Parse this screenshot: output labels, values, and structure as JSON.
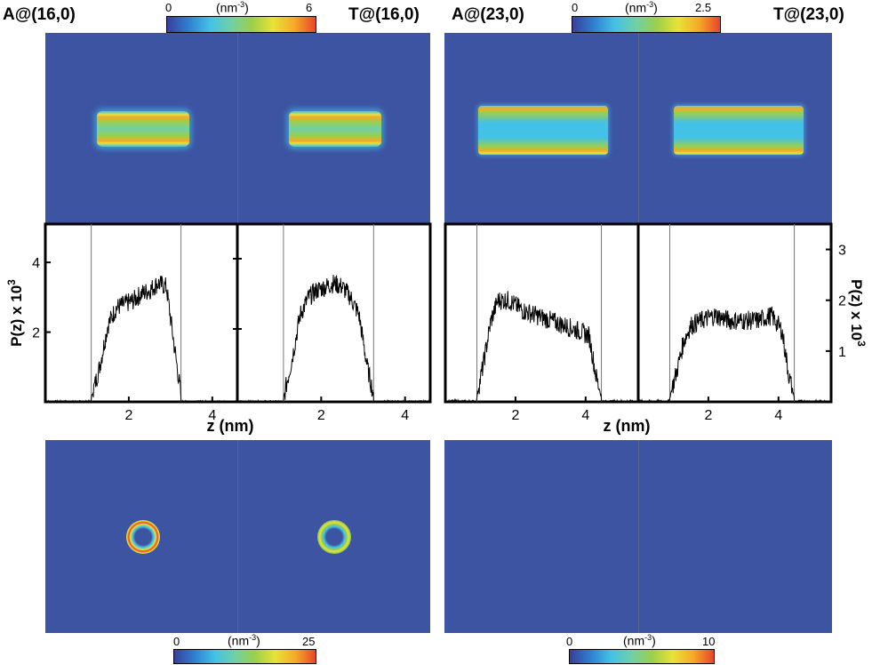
{
  "colors": {
    "map_background": "#3d54a3",
    "colormap": [
      "#3a3f9a",
      "#2f7fcf",
      "#43c1e6",
      "#6fd0a8",
      "#9ccf4a",
      "#e8e238",
      "#f6a928",
      "#e8452a"
    ]
  },
  "top": {
    "left_group": {
      "labels": [
        "A@(16,0)",
        "T@(16,0)"
      ],
      "colorbar": {
        "min": "0",
        "unit": "(nm",
        "unit_exp": "-3",
        "unit_close": ")",
        "max": "6"
      }
    },
    "right_group": {
      "labels": [
        "A@(23,0)",
        "T@(23,0)"
      ],
      "colorbar": {
        "min": "0",
        "unit": "(nm",
        "unit_exp": "-3",
        "unit_close": ")",
        "max": "2.5"
      }
    }
  },
  "bottom": {
    "left_group": {
      "colorbar": {
        "min": "0",
        "unit": "(nm",
        "unit_exp": "-3",
        "unit_close": ")",
        "max": "25"
      }
    },
    "right_group": {
      "colorbar": {
        "min": "0",
        "unit": "(nm",
        "unit_exp": "-3",
        "unit_close": ")",
        "max": "10"
      }
    }
  },
  "chart_data": [
    {
      "type": "line",
      "panel": "A@(16,0)",
      "xlabel": "z (nm)",
      "ylabel": "P(z) x 10",
      "ylabel_exp": "3",
      "xlim": [
        0,
        4.6
      ],
      "ylim": [
        0,
        5.1
      ],
      "xticks": [
        "2",
        "4"
      ],
      "yticks": [
        "2",
        "4"
      ],
      "vlines": [
        1.1,
        3.25
      ],
      "series": [
        {
          "x": [
            1.1,
            1.3,
            1.5,
            1.7,
            1.9,
            2.1,
            2.3,
            2.5,
            2.7,
            2.9,
            3.1,
            3.25
          ],
          "values": [
            0.1,
            1.0,
            2.2,
            2.7,
            2.8,
            2.9,
            3.1,
            3.2,
            3.4,
            3.3,
            1.5,
            0.2
          ]
        }
      ]
    },
    {
      "type": "line",
      "panel": "T@(16,0)",
      "xlabel": "z (nm)",
      "xlim": [
        0,
        4.6
      ],
      "ylim": [
        0,
        5.1
      ],
      "xticks": [
        "2",
        "4"
      ],
      "vlines": [
        1.1,
        3.25
      ],
      "series": [
        {
          "x": [
            1.1,
            1.3,
            1.5,
            1.7,
            1.9,
            2.1,
            2.3,
            2.5,
            2.7,
            2.9,
            3.1,
            3.25
          ],
          "values": [
            0.1,
            1.2,
            2.5,
            3.0,
            3.2,
            3.3,
            3.4,
            3.3,
            3.0,
            2.5,
            1.0,
            0.2
          ]
        }
      ]
    },
    {
      "type": "line",
      "panel": "A@(23,0)",
      "xlabel": "z (nm)",
      "xlim": [
        0,
        5.5
      ],
      "ylim": [
        0,
        3.5
      ],
      "xticks": [
        "2",
        "4"
      ],
      "vlines": [
        0.9,
        4.45
      ],
      "series": [
        {
          "x": [
            0.9,
            1.1,
            1.3,
            1.5,
            1.8,
            2.2,
            2.6,
            3.0,
            3.4,
            3.8,
            4.1,
            4.3,
            4.45
          ],
          "values": [
            0.1,
            0.8,
            1.6,
            2.0,
            2.0,
            1.8,
            1.7,
            1.6,
            1.5,
            1.4,
            1.3,
            0.5,
            0.1
          ]
        }
      ]
    },
    {
      "type": "line",
      "panel": "T@(23,0)",
      "xlabel": "z (nm)",
      "ylabel": "P(z) x 10",
      "ylabel_exp": "3",
      "xlim": [
        0,
        5.5
      ],
      "ylim": [
        0,
        3.5
      ],
      "xticks": [
        "2",
        "4"
      ],
      "yticks": [
        "1",
        "2",
        "3"
      ],
      "vlines": [
        0.9,
        4.45
      ],
      "series": [
        {
          "x": [
            0.9,
            1.1,
            1.3,
            1.5,
            1.8,
            2.2,
            2.6,
            3.0,
            3.4,
            3.8,
            4.1,
            4.3,
            4.45
          ],
          "values": [
            0.1,
            0.6,
            1.2,
            1.5,
            1.6,
            1.7,
            1.6,
            1.6,
            1.6,
            1.7,
            1.4,
            0.5,
            0.1
          ]
        }
      ]
    }
  ]
}
